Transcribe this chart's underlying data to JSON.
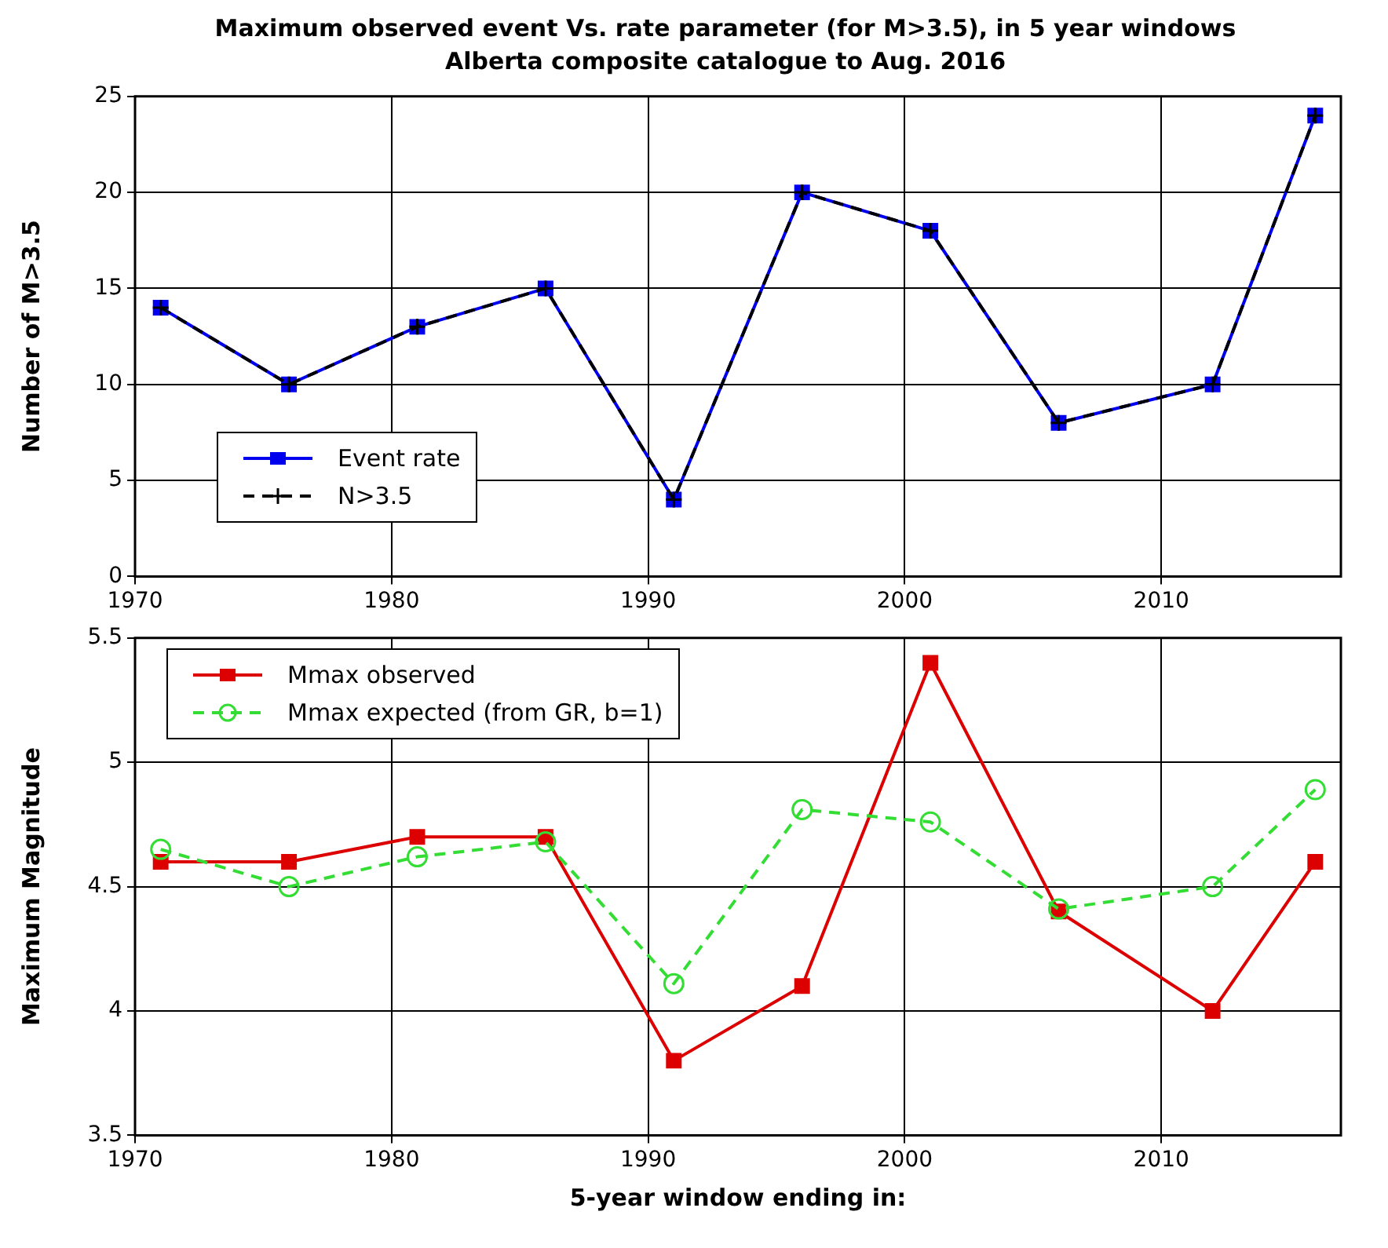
{
  "chart_data": [
    {
      "type": "line",
      "title": "Maximum observed event Vs. rate parameter (for M>3.5), in 5 year windows",
      "subtitle": "Alberta composite catalogue to Aug. 2016",
      "ylabel": "Number of M>3.5",
      "x": [
        1971,
        1976,
        1981,
        1986,
        1991,
        1996,
        2001,
        2006,
        2012,
        2016
      ],
      "xlim": [
        1970,
        2017
      ],
      "xticks": [
        1970,
        1980,
        1990,
        2000,
        2010
      ],
      "ylim": [
        0,
        25
      ],
      "yticks": [
        0,
        5,
        10,
        15,
        20,
        25
      ],
      "grid": true,
      "legend": "bottom left",
      "series": [
        {
          "name": "Event rate",
          "color": "#0000ee",
          "marker": "square",
          "line_style": "solid",
          "values": [
            14,
            10,
            13,
            15,
            4,
            20,
            18,
            8,
            10,
            24
          ]
        },
        {
          "name": "N>3.5",
          "color": "#000000",
          "marker": "cross",
          "line_style": "dashed",
          "values": [
            14,
            10,
            13,
            15,
            4,
            20,
            18,
            8,
            10,
            24
          ]
        }
      ]
    },
    {
      "type": "line",
      "ylabel": "Maximum Magnitude",
      "xlabel": "5-year window ending in:",
      "x": [
        1971,
        1976,
        1981,
        1986,
        1991,
        1996,
        2001,
        2006,
        2012,
        2016
      ],
      "xlim": [
        1970,
        2017
      ],
      "xticks": [
        1970,
        1980,
        1990,
        2000,
        2010
      ],
      "ylim": [
        3.5,
        5.5
      ],
      "yticks": [
        3.5,
        4,
        4.5,
        5,
        5.5
      ],
      "grid": true,
      "legend": "top left",
      "series": [
        {
          "name": "Mmax observed",
          "color": "#dd0000",
          "marker": "square",
          "line_style": "solid",
          "values": [
            4.6,
            4.6,
            4.7,
            4.7,
            3.8,
            4.1,
            5.4,
            4.4,
            4.0,
            4.6
          ]
        },
        {
          "name": "Mmax expected (from GR, b=1)",
          "color": "#33dd33",
          "marker": "circle",
          "line_style": "dashed",
          "values": [
            4.65,
            4.5,
            4.62,
            4.68,
            4.11,
            4.81,
            4.76,
            4.41,
            4.5,
            4.89
          ]
        }
      ]
    }
  ]
}
